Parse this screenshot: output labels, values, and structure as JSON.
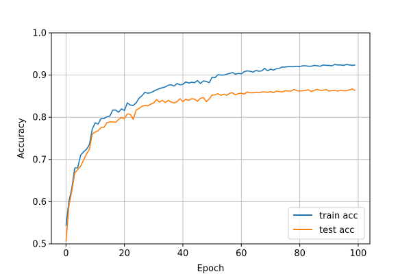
{
  "chart_data": {
    "type": "line",
    "title": "",
    "xlabel": "Epoch",
    "ylabel": "Accuracy",
    "xlim": [
      -5,
      104
    ],
    "ylim": [
      0.5,
      1.0
    ],
    "xticks": [
      0,
      20,
      40,
      60,
      80,
      100
    ],
    "yticks": [
      0.5,
      0.6,
      0.7,
      0.8,
      0.9,
      1.0
    ],
    "xtick_labels": [
      "0",
      "20",
      "40",
      "60",
      "80",
      "100"
    ],
    "ytick_labels": [
      "0.5",
      "0.6",
      "0.7",
      "0.8",
      "0.9",
      "1.0"
    ],
    "grid": true,
    "legend_position": "lower-right",
    "series": [
      {
        "name": "train acc",
        "color": "#1f77b4",
        "x": [
          0,
          1,
          2,
          3,
          4,
          5,
          6,
          7,
          8,
          9,
          10,
          11,
          12,
          13,
          14,
          15,
          16,
          17,
          18,
          19,
          20,
          21,
          22,
          23,
          24,
          25,
          26,
          27,
          28,
          29,
          30,
          31,
          32,
          33,
          34,
          35,
          36,
          37,
          38,
          39,
          40,
          41,
          42,
          43,
          44,
          45,
          46,
          47,
          48,
          49,
          50,
          51,
          52,
          53,
          54,
          55,
          56,
          57,
          58,
          59,
          60,
          61,
          62,
          63,
          64,
          65,
          66,
          67,
          68,
          69,
          70,
          71,
          72,
          73,
          74,
          75,
          76,
          77,
          78,
          79,
          80,
          81,
          82,
          83,
          84,
          85,
          86,
          87,
          88,
          89,
          90,
          91,
          92,
          93,
          94,
          95,
          96,
          97,
          98,
          99
        ],
        "values": [
          0.543,
          0.6,
          0.632,
          0.68,
          0.68,
          0.71,
          0.718,
          0.724,
          0.735,
          0.772,
          0.787,
          0.784,
          0.797,
          0.797,
          0.801,
          0.803,
          0.817,
          0.817,
          0.812,
          0.82,
          0.816,
          0.834,
          0.829,
          0.828,
          0.834,
          0.845,
          0.851,
          0.859,
          0.857,
          0.858,
          0.862,
          0.865,
          0.868,
          0.87,
          0.872,
          0.876,
          0.877,
          0.874,
          0.88,
          0.877,
          0.878,
          0.884,
          0.881,
          0.883,
          0.882,
          0.887,
          0.88,
          0.886,
          0.885,
          0.882,
          0.895,
          0.894,
          0.901,
          0.9,
          0.9,
          0.902,
          0.904,
          0.906,
          0.902,
          0.904,
          0.903,
          0.908,
          0.91,
          0.909,
          0.907,
          0.911,
          0.909,
          0.91,
          0.916,
          0.91,
          0.914,
          0.912,
          0.915,
          0.916,
          0.919,
          0.919,
          0.92,
          0.92,
          0.92,
          0.921,
          0.92,
          0.922,
          0.922,
          0.921,
          0.921,
          0.923,
          0.922,
          0.921,
          0.924,
          0.923,
          0.923,
          0.922,
          0.925,
          0.924,
          0.924,
          0.923,
          0.925,
          0.924,
          0.923,
          0.924
        ]
      },
      {
        "name": "test acc",
        "color": "#ff7f0e",
        "x": [
          0,
          1,
          2,
          3,
          4,
          5,
          6,
          7,
          8,
          9,
          10,
          11,
          12,
          13,
          14,
          15,
          16,
          17,
          18,
          19,
          20,
          21,
          22,
          23,
          24,
          25,
          26,
          27,
          28,
          29,
          30,
          31,
          32,
          33,
          34,
          35,
          36,
          37,
          38,
          39,
          40,
          41,
          42,
          43,
          44,
          45,
          46,
          47,
          48,
          49,
          50,
          51,
          52,
          53,
          54,
          55,
          56,
          57,
          58,
          59,
          60,
          61,
          62,
          63,
          64,
          65,
          66,
          67,
          68,
          69,
          70,
          71,
          72,
          73,
          74,
          75,
          76,
          77,
          78,
          79,
          80,
          81,
          82,
          83,
          84,
          85,
          86,
          87,
          88,
          89,
          90,
          91,
          92,
          93,
          94,
          95,
          96,
          97,
          98,
          99
        ],
        "values": [
          0.505,
          0.59,
          0.625,
          0.668,
          0.676,
          0.684,
          0.698,
          0.713,
          0.724,
          0.76,
          0.765,
          0.768,
          0.776,
          0.776,
          0.787,
          0.789,
          0.789,
          0.788,
          0.795,
          0.799,
          0.797,
          0.808,
          0.807,
          0.795,
          0.817,
          0.821,
          0.826,
          0.828,
          0.827,
          0.831,
          0.834,
          0.842,
          0.836,
          0.84,
          0.835,
          0.84,
          0.836,
          0.834,
          0.837,
          0.844,
          0.837,
          0.843,
          0.84,
          0.844,
          0.843,
          0.838,
          0.845,
          0.847,
          0.837,
          0.843,
          0.853,
          0.853,
          0.856,
          0.852,
          0.855,
          0.852,
          0.857,
          0.858,
          0.853,
          0.856,
          0.857,
          0.855,
          0.86,
          0.858,
          0.858,
          0.859,
          0.858,
          0.86,
          0.86,
          0.859,
          0.861,
          0.858,
          0.862,
          0.861,
          0.86,
          0.863,
          0.862,
          0.862,
          0.866,
          0.863,
          0.862,
          0.863,
          0.864,
          0.865,
          0.861,
          0.864,
          0.866,
          0.864,
          0.864,
          0.866,
          0.862,
          0.863,
          0.864,
          0.862,
          0.864,
          0.863,
          0.863,
          0.865,
          0.867,
          0.863
        ]
      }
    ]
  }
}
